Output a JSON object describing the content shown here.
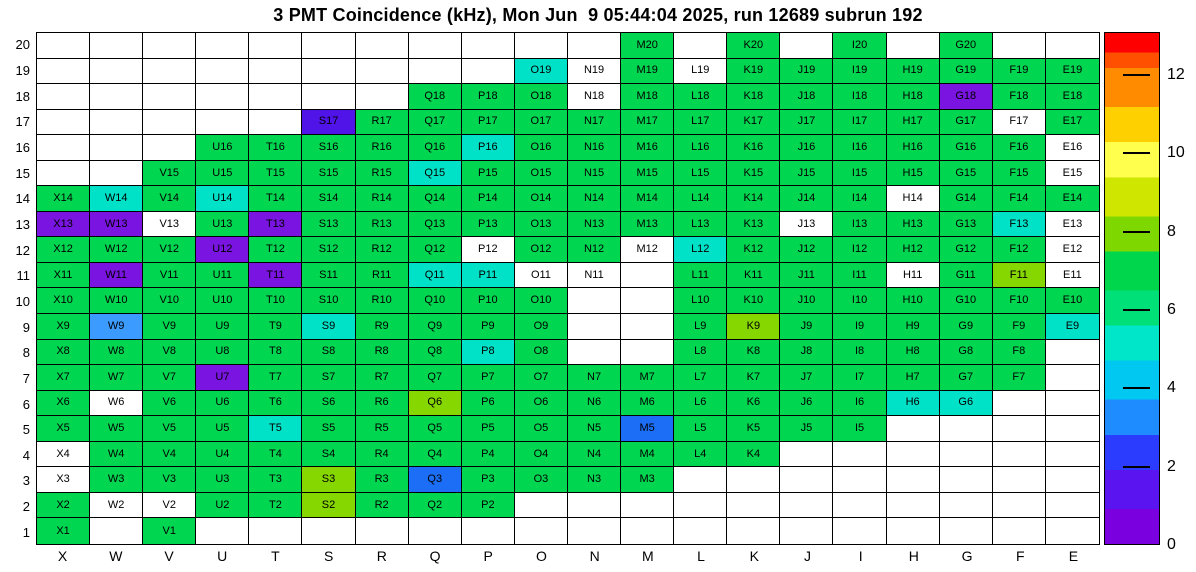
{
  "title": "3 PMT Coincidence (kHz), Mon Jun  9 05:44:04 2025, run 12689 subrun 192",
  "run": "12689",
  "subrun": "192",
  "timestamp": "Mon Jun  9 05:44:04 2025",
  "chart_data": {
    "type": "heatmap",
    "unit": "kHz",
    "x_labels": [
      "X",
      "W",
      "V",
      "U",
      "T",
      "S",
      "R",
      "Q",
      "P",
      "O",
      "N",
      "M",
      "L",
      "K",
      "J",
      "I",
      "H",
      "G",
      "F",
      "E"
    ],
    "y_labels": [
      "20",
      "19",
      "18",
      "17",
      "16",
      "15",
      "14",
      "13",
      "12",
      "11",
      "10",
      "9",
      "8",
      "7",
      "6",
      "5",
      "4",
      "3",
      "2",
      "1"
    ],
    "palette": {
      "g": "#00d650",
      "yg": "#86d600",
      "c": "#00e2c8",
      "lb": "#3c9bff",
      "b": "#1b6ef5",
      "p": "#7a14e0",
      "vp": "#5013e8",
      "w": "#ffffff"
    },
    "color_value_estimates_khz": {
      "g": 6.5,
      "yg": 8.5,
      "c": 4.5,
      "lb": 3.2,
      "b": 2.5,
      "p": 0.8,
      "vp": 1.2,
      "w": 0
    },
    "colorbar": {
      "ticks": [
        0,
        2,
        4,
        6,
        8,
        10,
        12
      ],
      "scale_min": 0,
      "scale_max": 13.1,
      "bands": [
        {
          "from": 0.0,
          "to": 0.9,
          "color": "#7a00e0"
        },
        {
          "from": 0.9,
          "to": 1.9,
          "color": "#5a14f0"
        },
        {
          "from": 1.9,
          "to": 2.8,
          "color": "#2b3cff"
        },
        {
          "from": 2.8,
          "to": 3.7,
          "color": "#1e8cff"
        },
        {
          "from": 3.7,
          "to": 4.7,
          "color": "#00c8f0"
        },
        {
          "from": 4.7,
          "to": 5.6,
          "color": "#00e6c8"
        },
        {
          "from": 5.6,
          "to": 6.5,
          "color": "#00e078"
        },
        {
          "from": 6.5,
          "to": 7.5,
          "color": "#00d64b"
        },
        {
          "from": 7.5,
          "to": 8.4,
          "color": "#7ed800"
        },
        {
          "from": 8.4,
          "to": 9.4,
          "color": "#cfe600"
        },
        {
          "from": 9.4,
          "to": 10.3,
          "color": "#ffff4d"
        },
        {
          "from": 10.3,
          "to": 11.2,
          "color": "#ffd000"
        },
        {
          "from": 11.2,
          "to": 12.2,
          "color": "#ff8c00"
        },
        {
          "from": 12.2,
          "to": 12.6,
          "color": "#ff5000"
        },
        {
          "from": 12.6,
          "to": 13.1,
          "color": "#ff0000"
        }
      ]
    },
    "cells": [
      [
        null,
        null,
        null,
        null,
        null,
        null,
        null,
        null,
        null,
        null,
        null,
        [
          "M20",
          "g"
        ],
        null,
        [
          "K20",
          "g"
        ],
        null,
        [
          "I20",
          "g"
        ],
        null,
        [
          "G20",
          "g"
        ],
        null,
        null
      ],
      [
        null,
        null,
        null,
        null,
        null,
        null,
        null,
        null,
        null,
        [
          "O19",
          "c"
        ],
        [
          "N19",
          "w"
        ],
        [
          "M19",
          "g"
        ],
        [
          "L19",
          "w"
        ],
        [
          "K19",
          "g"
        ],
        [
          "J19",
          "g"
        ],
        [
          "I19",
          "g"
        ],
        [
          "H19",
          "g"
        ],
        [
          "G19",
          "g"
        ],
        [
          "F19",
          "g"
        ],
        [
          "E19",
          "g"
        ]
      ],
      [
        null,
        null,
        null,
        null,
        null,
        null,
        null,
        [
          "Q18",
          "g"
        ],
        [
          "P18",
          "g"
        ],
        [
          "O18",
          "g"
        ],
        [
          "N18",
          "w"
        ],
        [
          "M18",
          "g"
        ],
        [
          "L18",
          "g"
        ],
        [
          "K18",
          "g"
        ],
        [
          "J18",
          "g"
        ],
        [
          "I18",
          "g"
        ],
        [
          "H18",
          "g"
        ],
        [
          "G18",
          "p"
        ],
        [
          "F18",
          "g"
        ],
        [
          "E18",
          "g"
        ]
      ],
      [
        null,
        null,
        null,
        null,
        null,
        [
          "S17",
          "vp"
        ],
        [
          "R17",
          "g"
        ],
        [
          "Q17",
          "g"
        ],
        [
          "P17",
          "g"
        ],
        [
          "O17",
          "g"
        ],
        [
          "N17",
          "g"
        ],
        [
          "M17",
          "g"
        ],
        [
          "L17",
          "g"
        ],
        [
          "K17",
          "g"
        ],
        [
          "J17",
          "g"
        ],
        [
          "I17",
          "g"
        ],
        [
          "H17",
          "g"
        ],
        [
          "G17",
          "g"
        ],
        [
          "F17",
          "w"
        ],
        [
          "E17",
          "g"
        ]
      ],
      [
        null,
        null,
        null,
        [
          "U16",
          "g"
        ],
        [
          "T16",
          "g"
        ],
        [
          "S16",
          "g"
        ],
        [
          "R16",
          "g"
        ],
        [
          "Q16",
          "g"
        ],
        [
          "P16",
          "c"
        ],
        [
          "O16",
          "g"
        ],
        [
          "N16",
          "g"
        ],
        [
          "M16",
          "g"
        ],
        [
          "L16",
          "g"
        ],
        [
          "K16",
          "g"
        ],
        [
          "J16",
          "g"
        ],
        [
          "I16",
          "g"
        ],
        [
          "H16",
          "g"
        ],
        [
          "G16",
          "g"
        ],
        [
          "F16",
          "g"
        ],
        [
          "E16",
          "w"
        ]
      ],
      [
        null,
        null,
        [
          "V15",
          "g"
        ],
        [
          "U15",
          "g"
        ],
        [
          "T15",
          "g"
        ],
        [
          "S15",
          "g"
        ],
        [
          "R15",
          "g"
        ],
        [
          "Q15",
          "c"
        ],
        [
          "P15",
          "g"
        ],
        [
          "O15",
          "g"
        ],
        [
          "N15",
          "g"
        ],
        [
          "M15",
          "g"
        ],
        [
          "L15",
          "g"
        ],
        [
          "K15",
          "g"
        ],
        [
          "J15",
          "g"
        ],
        [
          "I15",
          "g"
        ],
        [
          "H15",
          "g"
        ],
        [
          "G15",
          "g"
        ],
        [
          "F15",
          "g"
        ],
        [
          "E15",
          "w"
        ]
      ],
      [
        [
          "X14",
          "g"
        ],
        [
          "W14",
          "c"
        ],
        [
          "V14",
          "g"
        ],
        [
          "U14",
          "c"
        ],
        [
          "T14",
          "g"
        ],
        [
          "S14",
          "g"
        ],
        [
          "R14",
          "g"
        ],
        [
          "Q14",
          "g"
        ],
        [
          "P14",
          "g"
        ],
        [
          "O14",
          "g"
        ],
        [
          "N14",
          "g"
        ],
        [
          "M14",
          "g"
        ],
        [
          "L14",
          "g"
        ],
        [
          "K14",
          "g"
        ],
        [
          "J14",
          "g"
        ],
        [
          "I14",
          "g"
        ],
        [
          "H14",
          "w"
        ],
        [
          "G14",
          "g"
        ],
        [
          "F14",
          "g"
        ],
        [
          "E14",
          "g"
        ]
      ],
      [
        [
          "X13",
          "p"
        ],
        [
          "W13",
          "p"
        ],
        [
          "V13",
          "w"
        ],
        [
          "U13",
          "g"
        ],
        [
          "T13",
          "p"
        ],
        [
          "S13",
          "g"
        ],
        [
          "R13",
          "g"
        ],
        [
          "Q13",
          "g"
        ],
        [
          "P13",
          "g"
        ],
        [
          "O13",
          "g"
        ],
        [
          "N13",
          "g"
        ],
        [
          "M13",
          "g"
        ],
        [
          "L13",
          "g"
        ],
        [
          "K13",
          "g"
        ],
        [
          "J13",
          "w"
        ],
        [
          "I13",
          "g"
        ],
        [
          "H13",
          "g"
        ],
        [
          "G13",
          "g"
        ],
        [
          "F13",
          "c"
        ],
        [
          "E13",
          "w"
        ]
      ],
      [
        [
          "X12",
          "g"
        ],
        [
          "W12",
          "g"
        ],
        [
          "V12",
          "g"
        ],
        [
          "U12",
          "p"
        ],
        [
          "T12",
          "g"
        ],
        [
          "S12",
          "g"
        ],
        [
          "R12",
          "g"
        ],
        [
          "Q12",
          "g"
        ],
        [
          "P12",
          "w"
        ],
        [
          "O12",
          "g"
        ],
        [
          "N12",
          "g"
        ],
        [
          "M12",
          "w"
        ],
        [
          "L12",
          "c"
        ],
        [
          "K12",
          "g"
        ],
        [
          "J12",
          "g"
        ],
        [
          "I12",
          "g"
        ],
        [
          "H12",
          "g"
        ],
        [
          "G12",
          "g"
        ],
        [
          "F12",
          "g"
        ],
        [
          "E12",
          "w"
        ]
      ],
      [
        [
          "X11",
          "g"
        ],
        [
          "W11",
          "p"
        ],
        [
          "V11",
          "g"
        ],
        [
          "U11",
          "g"
        ],
        [
          "T11",
          "p"
        ],
        [
          "S11",
          "g"
        ],
        [
          "R11",
          "g"
        ],
        [
          "Q11",
          "c"
        ],
        [
          "P11",
          "c"
        ],
        [
          "O11",
          "w"
        ],
        [
          "N11",
          "w"
        ],
        null,
        [
          "L11",
          "g"
        ],
        [
          "K11",
          "g"
        ],
        [
          "J11",
          "g"
        ],
        [
          "I11",
          "g"
        ],
        [
          "H11",
          "w"
        ],
        [
          "G11",
          "g"
        ],
        [
          "F11",
          "yg"
        ],
        [
          "E11",
          "w"
        ]
      ],
      [
        [
          "X10",
          "g"
        ],
        [
          "W10",
          "g"
        ],
        [
          "V10",
          "g"
        ],
        [
          "U10",
          "g"
        ],
        [
          "T10",
          "g"
        ],
        [
          "S10",
          "g"
        ],
        [
          "R10",
          "g"
        ],
        [
          "Q10",
          "g"
        ],
        [
          "P10",
          "g"
        ],
        [
          "O10",
          "g"
        ],
        null,
        null,
        [
          "L10",
          "g"
        ],
        [
          "K10",
          "g"
        ],
        [
          "J10",
          "g"
        ],
        [
          "I10",
          "g"
        ],
        [
          "H10",
          "g"
        ],
        [
          "G10",
          "g"
        ],
        [
          "F10",
          "g"
        ],
        [
          "E10",
          "g"
        ]
      ],
      [
        [
          "X9",
          "g"
        ],
        [
          "W9",
          "lb"
        ],
        [
          "V9",
          "g"
        ],
        [
          "U9",
          "g"
        ],
        [
          "T9",
          "g"
        ],
        [
          "S9",
          "c"
        ],
        [
          "R9",
          "g"
        ],
        [
          "Q9",
          "g"
        ],
        [
          "P9",
          "g"
        ],
        [
          "O9",
          "g"
        ],
        null,
        null,
        [
          "L9",
          "g"
        ],
        [
          "K9",
          "yg"
        ],
        [
          "J9",
          "g"
        ],
        [
          "I9",
          "g"
        ],
        [
          "H9",
          "g"
        ],
        [
          "G9",
          "g"
        ],
        [
          "F9",
          "g"
        ],
        [
          "E9",
          "c"
        ]
      ],
      [
        [
          "X8",
          "g"
        ],
        [
          "W8",
          "g"
        ],
        [
          "V8",
          "g"
        ],
        [
          "U8",
          "g"
        ],
        [
          "T8",
          "g"
        ],
        [
          "S8",
          "g"
        ],
        [
          "R8",
          "g"
        ],
        [
          "Q8",
          "g"
        ],
        [
          "P8",
          "c"
        ],
        [
          "O8",
          "g"
        ],
        null,
        null,
        [
          "L8",
          "g"
        ],
        [
          "K8",
          "g"
        ],
        [
          "J8",
          "g"
        ],
        [
          "I8",
          "g"
        ],
        [
          "H8",
          "g"
        ],
        [
          "G8",
          "g"
        ],
        [
          "F8",
          "g"
        ],
        null
      ],
      [
        [
          "X7",
          "g"
        ],
        [
          "W7",
          "g"
        ],
        [
          "V7",
          "g"
        ],
        [
          "U7",
          "p"
        ],
        [
          "T7",
          "g"
        ],
        [
          "S7",
          "g"
        ],
        [
          "R7",
          "g"
        ],
        [
          "Q7",
          "g"
        ],
        [
          "P7",
          "g"
        ],
        [
          "O7",
          "g"
        ],
        [
          "N7",
          "g"
        ],
        [
          "M7",
          "g"
        ],
        [
          "L7",
          "g"
        ],
        [
          "K7",
          "g"
        ],
        [
          "J7",
          "g"
        ],
        [
          "I7",
          "g"
        ],
        [
          "H7",
          "g"
        ],
        [
          "G7",
          "g"
        ],
        [
          "F7",
          "g"
        ],
        null
      ],
      [
        [
          "X6",
          "g"
        ],
        [
          "W6",
          "w"
        ],
        [
          "V6",
          "g"
        ],
        [
          "U6",
          "g"
        ],
        [
          "T6",
          "g"
        ],
        [
          "S6",
          "g"
        ],
        [
          "R6",
          "g"
        ],
        [
          "Q6",
          "yg"
        ],
        [
          "P6",
          "g"
        ],
        [
          "O6",
          "g"
        ],
        [
          "N6",
          "g"
        ],
        [
          "M6",
          "g"
        ],
        [
          "L6",
          "g"
        ],
        [
          "K6",
          "g"
        ],
        [
          "J6",
          "g"
        ],
        [
          "I6",
          "g"
        ],
        [
          "H6",
          "c"
        ],
        [
          "G6",
          "c"
        ],
        null,
        null
      ],
      [
        [
          "X5",
          "g"
        ],
        [
          "W5",
          "g"
        ],
        [
          "V5",
          "g"
        ],
        [
          "U5",
          "g"
        ],
        [
          "T5",
          "c"
        ],
        [
          "S5",
          "g"
        ],
        [
          "R5",
          "g"
        ],
        [
          "Q5",
          "g"
        ],
        [
          "P5",
          "g"
        ],
        [
          "O5",
          "g"
        ],
        [
          "N5",
          "g"
        ],
        [
          "M5",
          "b"
        ],
        [
          "L5",
          "g"
        ],
        [
          "K5",
          "g"
        ],
        [
          "J5",
          "g"
        ],
        [
          "I5",
          "g"
        ],
        null,
        null,
        null,
        null
      ],
      [
        [
          "X4",
          "w"
        ],
        [
          "W4",
          "g"
        ],
        [
          "V4",
          "g"
        ],
        [
          "U4",
          "g"
        ],
        [
          "T4",
          "g"
        ],
        [
          "S4",
          "g"
        ],
        [
          "R4",
          "g"
        ],
        [
          "Q4",
          "g"
        ],
        [
          "P4",
          "g"
        ],
        [
          "O4",
          "g"
        ],
        [
          "N4",
          "g"
        ],
        [
          "M4",
          "g"
        ],
        [
          "L4",
          "g"
        ],
        [
          "K4",
          "g"
        ],
        null,
        null,
        null,
        null,
        null,
        null
      ],
      [
        [
          "X3",
          "w"
        ],
        [
          "W3",
          "g"
        ],
        [
          "V3",
          "g"
        ],
        [
          "U3",
          "g"
        ],
        [
          "T3",
          "g"
        ],
        [
          "S3",
          "yg"
        ],
        [
          "R3",
          "g"
        ],
        [
          "Q3",
          "b"
        ],
        [
          "P3",
          "g"
        ],
        [
          "O3",
          "g"
        ],
        [
          "N3",
          "g"
        ],
        [
          "M3",
          "g"
        ],
        null,
        null,
        null,
        null,
        null,
        null,
        null,
        null
      ],
      [
        [
          "X2",
          "g"
        ],
        [
          "W2",
          "w"
        ],
        [
          "V2",
          "w"
        ],
        [
          "U2",
          "g"
        ],
        [
          "T2",
          "g"
        ],
        [
          "S2",
          "yg"
        ],
        [
          "R2",
          "g"
        ],
        [
          "Q2",
          "g"
        ],
        [
          "P2",
          "g"
        ],
        null,
        null,
        null,
        null,
        null,
        null,
        null,
        null,
        null,
        null,
        null
      ],
      [
        [
          "X1",
          "g"
        ],
        null,
        [
          "V1",
          "g"
        ],
        null,
        null,
        null,
        null,
        null,
        null,
        null,
        null,
        null,
        null,
        null,
        null,
        null,
        null,
        null,
        null,
        null
      ]
    ]
  }
}
